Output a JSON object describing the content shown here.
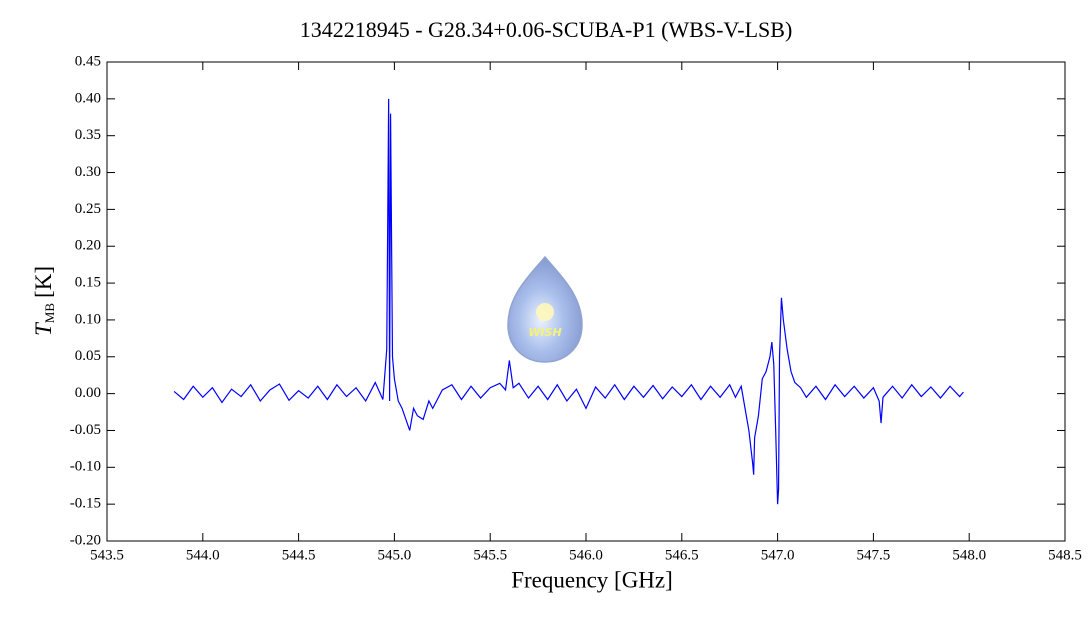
{
  "chart_data": {
    "type": "line",
    "title": "1342218945 - G28.34+0.06-SCUBA-P1 (WBS-V-LSB)",
    "x_label": "Frequency [GHz]",
    "y_label": {
      "symbol": "T",
      "subscript": "MB",
      "unit": "[K]"
    },
    "logo_text": "WISH",
    "color": "#0000ff",
    "xlim": [
      543.5,
      548.5
    ],
    "ylim": [
      -0.2,
      0.45
    ],
    "xticks": [
      {
        "value": 543.5,
        "label": "543.5"
      },
      {
        "value": 544,
        "label": "544.0"
      },
      {
        "value": 544.5,
        "label": "544.5"
      },
      {
        "value": 545,
        "label": "545.0"
      },
      {
        "value": 545.5,
        "label": "545.5"
      },
      {
        "value": 546,
        "label": "546.0"
      },
      {
        "value": 546.5,
        "label": "546.5"
      },
      {
        "value": 547,
        "label": "547.0"
      },
      {
        "value": 547.5,
        "label": "547.5"
      },
      {
        "value": 548,
        "label": "548.0"
      },
      {
        "value": 548.5,
        "label": "548.5"
      }
    ],
    "yticks": [
      {
        "value": -0.2,
        "label": "-0.20"
      },
      {
        "value": -0.15,
        "label": "-0.15"
      },
      {
        "value": -0.1,
        "label": "-0.10"
      },
      {
        "value": -0.05,
        "label": "-0.05"
      },
      {
        "value": 0,
        "label": "0.00"
      },
      {
        "value": 0.05,
        "label": "0.05"
      },
      {
        "value": 0.1,
        "label": "0.10"
      },
      {
        "value": 0.15,
        "label": "0.15"
      },
      {
        "value": 0.2,
        "label": "0.20"
      },
      {
        "value": 0.25,
        "label": "0.25"
      },
      {
        "value": 0.3,
        "label": "0.30"
      },
      {
        "value": 0.35,
        "label": "0.35"
      },
      {
        "value": 0.4,
        "label": "0.40"
      },
      {
        "value": 0.45,
        "label": "0.45"
      }
    ],
    "x": [
      543.85,
      543.9,
      543.95,
      544.0,
      544.05,
      544.1,
      544.15,
      544.2,
      544.25,
      544.3,
      544.35,
      544.4,
      544.45,
      544.5,
      544.55,
      544.6,
      544.65,
      544.7,
      544.75,
      544.8,
      544.85,
      544.9,
      544.94,
      544.96,
      544.97,
      544.975,
      544.98,
      544.99,
      545.0,
      545.02,
      545.04,
      545.06,
      545.08,
      545.1,
      545.12,
      545.15,
      545.18,
      545.2,
      545.25,
      545.3,
      545.35,
      545.4,
      545.45,
      545.5,
      545.55,
      545.58,
      545.6,
      545.62,
      545.65,
      545.7,
      545.75,
      545.8,
      545.85,
      545.9,
      545.95,
      546.0,
      546.05,
      546.1,
      546.15,
      546.2,
      546.25,
      546.3,
      546.35,
      546.4,
      546.45,
      546.5,
      546.55,
      546.6,
      546.65,
      546.7,
      546.75,
      546.78,
      546.81,
      546.83,
      546.85,
      546.87,
      546.875,
      546.88,
      546.9,
      546.92,
      546.94,
      546.96,
      546.97,
      546.98,
      546.99,
      547.0,
      547.005,
      547.01,
      547.02,
      547.03,
      547.05,
      547.07,
      547.09,
      547.12,
      547.15,
      547.2,
      547.25,
      547.3,
      547.35,
      547.4,
      547.45,
      547.5,
      547.53,
      547.54,
      547.55,
      547.6,
      547.65,
      547.7,
      547.75,
      547.8,
      547.85,
      547.9,
      547.95,
      547.97
    ],
    "values": [
      0.003,
      -0.008,
      0.01,
      -0.005,
      0.008,
      -0.012,
      0.006,
      -0.004,
      0.012,
      -0.01,
      0.005,
      0.013,
      -0.009,
      0.004,
      -0.006,
      0.01,
      -0.008,
      0.012,
      -0.004,
      0.008,
      -0.01,
      0.015,
      -0.008,
      0.06,
      0.4,
      -0.01,
      0.38,
      0.05,
      0.02,
      -0.01,
      -0.02,
      -0.035,
      -0.05,
      -0.02,
      -0.03,
      -0.035,
      -0.01,
      -0.02,
      0.005,
      0.012,
      -0.008,
      0.01,
      -0.006,
      0.008,
      0.014,
      0.005,
      0.045,
      0.008,
      0.014,
      -0.006,
      0.01,
      -0.008,
      0.012,
      -0.01,
      0.006,
      -0.02,
      0.009,
      -0.006,
      0.012,
      -0.008,
      0.01,
      -0.005,
      0.011,
      -0.007,
      0.009,
      -0.004,
      0.012,
      -0.008,
      0.01,
      -0.005,
      0.012,
      -0.005,
      0.01,
      -0.02,
      -0.05,
      -0.095,
      -0.11,
      -0.06,
      -0.03,
      0.02,
      0.03,
      0.05,
      0.07,
      0.04,
      -0.05,
      -0.15,
      -0.13,
      0.05,
      0.13,
      0.1,
      0.06,
      0.03,
      0.015,
      0.008,
      -0.005,
      0.01,
      -0.008,
      0.012,
      -0.004,
      0.01,
      -0.006,
      0.008,
      -0.01,
      -0.04,
      -0.005,
      0.01,
      -0.006,
      0.012,
      -0.004,
      0.009,
      -0.006,
      0.01,
      -0.004,
      0.002
    ]
  }
}
